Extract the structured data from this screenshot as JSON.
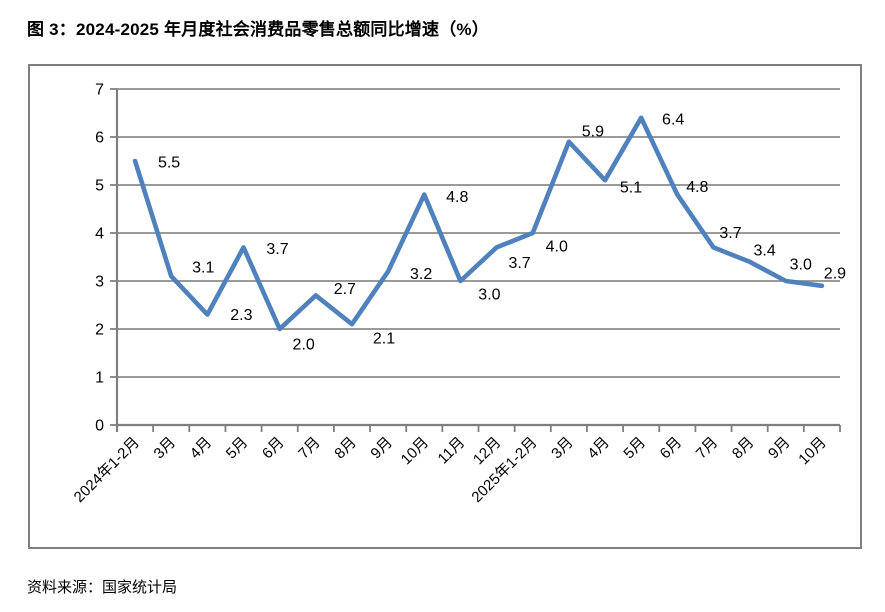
{
  "page": {
    "title": "图 3：2024-2025 年月度社会消费品零售总额同比增速（%）",
    "source": "资料来源：国家统计局"
  },
  "chart_data": {
    "type": "line",
    "title": "2024-2025 年月度社会消费品零售总额同比增速（%）",
    "categories": [
      "2024年1-2月",
      "3月",
      "4月",
      "5月",
      "6月",
      "7月",
      "8月",
      "9月",
      "10月",
      "11月",
      "12月",
      "2025年1-2月",
      "3月",
      "4月",
      "5月",
      "6月",
      "7月",
      "8月",
      "9月",
      "10月"
    ],
    "values": [
      5.5,
      3.1,
      2.3,
      3.7,
      2.0,
      2.7,
      2.1,
      3.2,
      4.8,
      3.0,
      3.7,
      4.0,
      5.9,
      5.1,
      6.4,
      4.8,
      3.7,
      3.4,
      3.0,
      2.9
    ],
    "xlabel": "",
    "ylabel": "",
    "ylim": [
      0,
      7
    ],
    "yticks": [
      0,
      1,
      2,
      3,
      4,
      5,
      6,
      7
    ],
    "grid": "horizontal",
    "legend": "none",
    "data_labels": true,
    "value_decimals": 1,
    "colors": {
      "line": "#4F81BD",
      "gridline": "#8b8b8b",
      "axis": "#7f7f7f",
      "text": "#000000"
    }
  }
}
